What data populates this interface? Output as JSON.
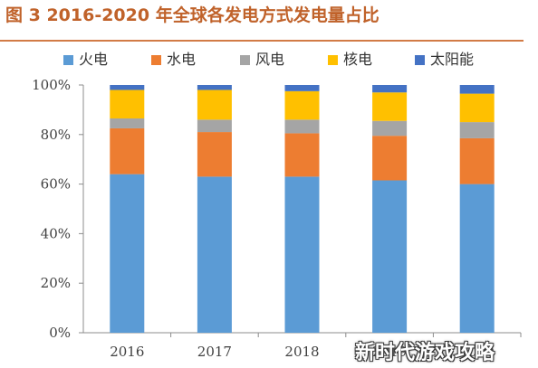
{
  "watermark": "新时代游戏攻略",
  "chart_data": {
    "type": "bar",
    "stacked": true,
    "title": "图 3 2016-2020 年全球各发电方式发电量占比",
    "xlabel": "",
    "ylabel": "",
    "categories": [
      "2016",
      "2017",
      "2018",
      "2019",
      "2020"
    ],
    "ylim": [
      0,
      100
    ],
    "y_ticks": [
      "0%",
      "20%",
      "40%",
      "60%",
      "80%",
      "100%"
    ],
    "legend_position": "top",
    "grid": false,
    "series": [
      {
        "name": "火电",
        "color": "#5b9bd5",
        "values": [
          64,
          63,
          63,
          61.5,
          60
        ]
      },
      {
        "name": "水电",
        "color": "#ed7d31",
        "values": [
          18.5,
          18,
          17.5,
          18,
          18.5
        ]
      },
      {
        "name": "风电",
        "color": "#a5a5a5",
        "values": [
          4,
          5,
          5.5,
          6,
          6.5
        ]
      },
      {
        "name": "核电",
        "color": "#ffc000",
        "values": [
          11.5,
          12,
          11.5,
          11.5,
          11.5
        ]
      },
      {
        "name": "太阳能",
        "color": "#4472c4",
        "values": [
          2,
          2,
          2.5,
          3,
          3.5
        ]
      }
    ]
  }
}
